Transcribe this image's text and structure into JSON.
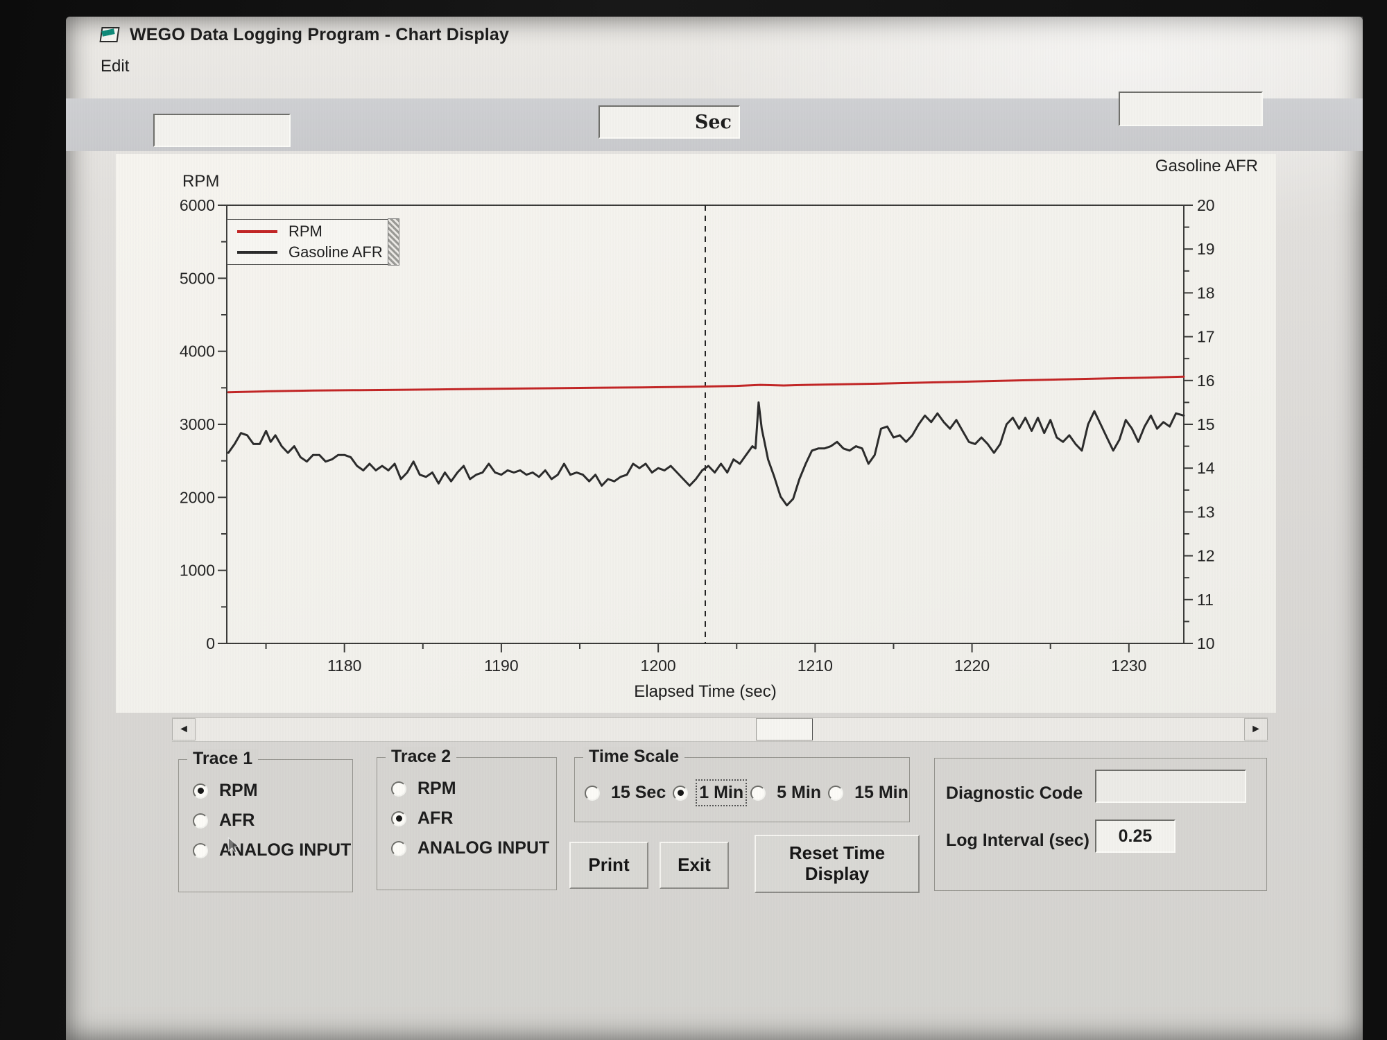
{
  "window": {
    "title": "WEGO Data Logging Program - Chart Display"
  },
  "menu": {
    "edit_label": "Edit"
  },
  "header_fields": {
    "left_value": "",
    "time_value": "",
    "time_unit_label": "Sec",
    "right_value": ""
  },
  "chart_data": {
    "type": "line",
    "xlabel": "Elapsed Time (sec)",
    "x_range": [
      1172.5,
      1233.5
    ],
    "x_major_ticks": [
      1180,
      1190,
      1200,
      1210,
      1220,
      1230
    ],
    "x_minor_step": 5,
    "left_axis": {
      "label": "RPM",
      "range": [
        0,
        6000
      ],
      "tick_step": 1000,
      "minor_step": 500
    },
    "right_axis": {
      "label": "Gasoline AFR",
      "range": [
        10,
        20
      ],
      "tick_step": 1,
      "minor_step": 0.5
    },
    "cursor_time": 1203,
    "grid": false,
    "legend_position": "top-left",
    "series": [
      {
        "name": "RPM",
        "color": "#c22525",
        "axis": "left",
        "points": [
          [
            1172.6,
            3440
          ],
          [
            1175,
            3452
          ],
          [
            1178,
            3462
          ],
          [
            1181,
            3468
          ],
          [
            1184,
            3474
          ],
          [
            1187,
            3480
          ],
          [
            1190,
            3488
          ],
          [
            1193,
            3494
          ],
          [
            1196,
            3500
          ],
          [
            1199,
            3506
          ],
          [
            1202,
            3514
          ],
          [
            1205,
            3526
          ],
          [
            1206.5,
            3540
          ],
          [
            1208,
            3532
          ],
          [
            1209.5,
            3540
          ],
          [
            1211,
            3546
          ],
          [
            1214,
            3556
          ],
          [
            1217,
            3572
          ],
          [
            1220,
            3586
          ],
          [
            1223,
            3602
          ],
          [
            1226,
            3616
          ],
          [
            1229,
            3630
          ],
          [
            1231,
            3638
          ],
          [
            1233.5,
            3652
          ]
        ]
      },
      {
        "name": "Gasoline AFR",
        "color": "#2b2b2b",
        "axis": "right",
        "points": [
          [
            1172.6,
            14.35
          ],
          [
            1173.0,
            14.55
          ],
          [
            1173.4,
            14.8
          ],
          [
            1173.8,
            14.75
          ],
          [
            1174.2,
            14.55
          ],
          [
            1174.6,
            14.55
          ],
          [
            1175.0,
            14.85
          ],
          [
            1175.3,
            14.6
          ],
          [
            1175.6,
            14.75
          ],
          [
            1176.0,
            14.5
          ],
          [
            1176.4,
            14.35
          ],
          [
            1176.8,
            14.5
          ],
          [
            1177.2,
            14.25
          ],
          [
            1177.6,
            14.15
          ],
          [
            1178.0,
            14.3
          ],
          [
            1178.4,
            14.3
          ],
          [
            1178.8,
            14.15
          ],
          [
            1179.2,
            14.2
          ],
          [
            1179.6,
            14.3
          ],
          [
            1180.0,
            14.3
          ],
          [
            1180.4,
            14.25
          ],
          [
            1180.8,
            14.05
          ],
          [
            1181.2,
            13.95
          ],
          [
            1181.6,
            14.1
          ],
          [
            1182.0,
            13.95
          ],
          [
            1182.4,
            14.05
          ],
          [
            1182.8,
            13.95
          ],
          [
            1183.2,
            14.1
          ],
          [
            1183.6,
            13.75
          ],
          [
            1184.0,
            13.9
          ],
          [
            1184.4,
            14.15
          ],
          [
            1184.8,
            13.85
          ],
          [
            1185.2,
            13.8
          ],
          [
            1185.6,
            13.9
          ],
          [
            1186.0,
            13.65
          ],
          [
            1186.4,
            13.9
          ],
          [
            1186.8,
            13.7
          ],
          [
            1187.2,
            13.9
          ],
          [
            1187.6,
            14.05
          ],
          [
            1188.0,
            13.75
          ],
          [
            1188.4,
            13.85
          ],
          [
            1188.8,
            13.9
          ],
          [
            1189.2,
            14.1
          ],
          [
            1189.6,
            13.9
          ],
          [
            1190.0,
            13.85
          ],
          [
            1190.4,
            13.95
          ],
          [
            1190.8,
            13.9
          ],
          [
            1191.2,
            13.95
          ],
          [
            1191.6,
            13.85
          ],
          [
            1192.0,
            13.9
          ],
          [
            1192.4,
            13.8
          ],
          [
            1192.8,
            13.95
          ],
          [
            1193.2,
            13.75
          ],
          [
            1193.6,
            13.85
          ],
          [
            1194.0,
            14.1
          ],
          [
            1194.4,
            13.85
          ],
          [
            1194.8,
            13.9
          ],
          [
            1195.2,
            13.85
          ],
          [
            1195.6,
            13.7
          ],
          [
            1196.0,
            13.85
          ],
          [
            1196.4,
            13.6
          ],
          [
            1196.8,
            13.75
          ],
          [
            1197.2,
            13.7
          ],
          [
            1197.6,
            13.8
          ],
          [
            1198.0,
            13.85
          ],
          [
            1198.4,
            14.1
          ],
          [
            1198.8,
            14.0
          ],
          [
            1199.2,
            14.1
          ],
          [
            1199.6,
            13.9
          ],
          [
            1200.0,
            14.0
          ],
          [
            1200.4,
            13.95
          ],
          [
            1200.8,
            14.05
          ],
          [
            1201.2,
            13.9
          ],
          [
            1201.6,
            13.75
          ],
          [
            1202.0,
            13.6
          ],
          [
            1202.4,
            13.75
          ],
          [
            1202.8,
            13.95
          ],
          [
            1203.2,
            14.05
          ],
          [
            1203.6,
            13.9
          ],
          [
            1204.0,
            14.1
          ],
          [
            1204.4,
            13.9
          ],
          [
            1204.8,
            14.2
          ],
          [
            1205.2,
            14.1
          ],
          [
            1205.6,
            14.3
          ],
          [
            1206.0,
            14.5
          ],
          [
            1206.2,
            14.45
          ],
          [
            1206.4,
            15.5
          ],
          [
            1206.6,
            14.9
          ],
          [
            1206.8,
            14.55
          ],
          [
            1207.0,
            14.2
          ],
          [
            1207.4,
            13.8
          ],
          [
            1207.8,
            13.35
          ],
          [
            1208.2,
            13.15
          ],
          [
            1208.6,
            13.3
          ],
          [
            1209.0,
            13.75
          ],
          [
            1209.4,
            14.1
          ],
          [
            1209.8,
            14.4
          ],
          [
            1210.2,
            14.45
          ],
          [
            1210.6,
            14.45
          ],
          [
            1211.0,
            14.5
          ],
          [
            1211.4,
            14.6
          ],
          [
            1211.8,
            14.45
          ],
          [
            1212.2,
            14.4
          ],
          [
            1212.6,
            14.5
          ],
          [
            1213.0,
            14.45
          ],
          [
            1213.4,
            14.1
          ],
          [
            1213.8,
            14.3
          ],
          [
            1214.2,
            14.9
          ],
          [
            1214.6,
            14.95
          ],
          [
            1215.0,
            14.7
          ],
          [
            1215.4,
            14.75
          ],
          [
            1215.8,
            14.6
          ],
          [
            1216.2,
            14.75
          ],
          [
            1216.6,
            15.0
          ],
          [
            1217.0,
            15.2
          ],
          [
            1217.4,
            15.05
          ],
          [
            1217.8,
            15.25
          ],
          [
            1218.2,
            15.05
          ],
          [
            1218.6,
            14.9
          ],
          [
            1219.0,
            15.1
          ],
          [
            1219.4,
            14.85
          ],
          [
            1219.8,
            14.6
          ],
          [
            1220.2,
            14.55
          ],
          [
            1220.6,
            14.7
          ],
          [
            1221.0,
            14.55
          ],
          [
            1221.4,
            14.35
          ],
          [
            1221.8,
            14.55
          ],
          [
            1222.2,
            15.0
          ],
          [
            1222.6,
            15.15
          ],
          [
            1223.0,
            14.9
          ],
          [
            1223.4,
            15.15
          ],
          [
            1223.8,
            14.85
          ],
          [
            1224.2,
            15.15
          ],
          [
            1224.6,
            14.8
          ],
          [
            1225.0,
            15.1
          ],
          [
            1225.4,
            14.7
          ],
          [
            1225.8,
            14.6
          ],
          [
            1226.2,
            14.75
          ],
          [
            1226.6,
            14.55
          ],
          [
            1227.0,
            14.4
          ],
          [
            1227.4,
            15.0
          ],
          [
            1227.8,
            15.3
          ],
          [
            1228.2,
            15.0
          ],
          [
            1228.6,
            14.7
          ],
          [
            1229.0,
            14.4
          ],
          [
            1229.4,
            14.65
          ],
          [
            1229.8,
            15.1
          ],
          [
            1230.2,
            14.9
          ],
          [
            1230.6,
            14.6
          ],
          [
            1231.0,
            14.95
          ],
          [
            1231.4,
            15.2
          ],
          [
            1231.8,
            14.9
          ],
          [
            1232.2,
            15.05
          ],
          [
            1232.6,
            14.95
          ],
          [
            1233.0,
            15.25
          ],
          [
            1233.5,
            15.2
          ]
        ]
      }
    ]
  },
  "trace1": {
    "title": "Trace 1",
    "options": [
      "RPM",
      "AFR",
      "ANALOG INPUT"
    ],
    "selected": "RPM"
  },
  "trace2": {
    "title": "Trace 2",
    "options": [
      "RPM",
      "AFR",
      "ANALOG INPUT"
    ],
    "selected": "AFR"
  },
  "time_scale": {
    "title": "Time Scale",
    "options": [
      "15 Sec",
      "1 Min",
      "5 Min",
      "15 Min"
    ],
    "selected": "1 Min",
    "focus_selected": true
  },
  "diagnostics": {
    "diagnostic_code_label": "Diagnostic Code",
    "diagnostic_code_value": "",
    "log_interval_label": "Log Interval (sec)",
    "log_interval_value": "0.25"
  },
  "buttons": {
    "print": "Print",
    "exit": "Exit",
    "reset": "Reset Time Display"
  }
}
